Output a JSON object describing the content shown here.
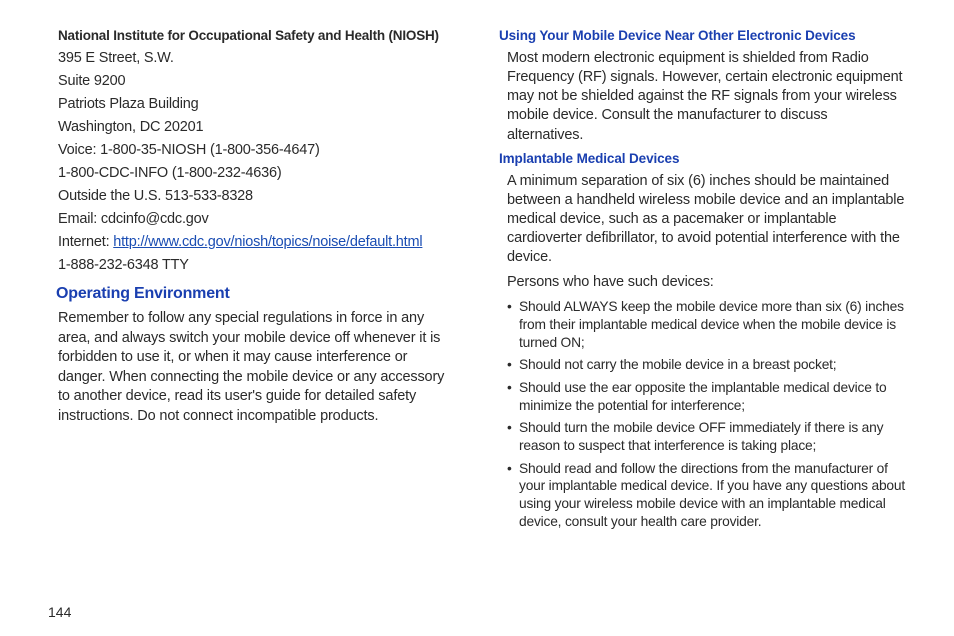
{
  "page_number": "144",
  "colors": {
    "heading_blue": "#1a3fb0",
    "link_blue": "#1a4db3",
    "body_text": "#2a2a2a",
    "background": "#ffffff"
  },
  "typography": {
    "body_fontsize": 14.5,
    "bullet_fontsize": 13.8,
    "h1_fontsize": 16,
    "h2_fontsize": 13.5,
    "bold_line_fontsize": 13.5,
    "font_family": "Arial"
  },
  "left": {
    "org_title": "National Institute for Occupational Safety and Health (NIOSH)",
    "address": [
      "395 E Street, S.W.",
      "Suite 9200",
      "Patriots Plaza Building",
      "Washington, DC 20201",
      "Voice: 1-800-35-NIOSH (1-800-356-4647)",
      "1-800-CDC-INFO (1-800-232-4636)",
      "Outside the U.S. 513-533-8328",
      "Email: cdcinfo@cdc.gov"
    ],
    "internet_prefix": "Internet: ",
    "internet_url": "http://www.cdc.gov/niosh/topics/noise/default.html",
    "tty": "1-888-232-6348 TTY",
    "section_heading": "Operating Environment",
    "section_para": "Remember to follow any special regulations in force in any area, and always switch your mobile device off whenever it is forbidden to use it, or when it may cause interference or danger. When connecting the mobile device or any accessory to another device, read its user's guide for detailed safety instructions. Do not connect incompatible products."
  },
  "right": {
    "sub1_heading": "Using Your Mobile Device Near Other Electronic Devices",
    "sub1_para": "Most modern electronic equipment is shielded from Radio Frequency (RF) signals. However, certain electronic equipment may not be shielded against the RF signals from your wireless mobile device. Consult the manufacturer to discuss alternatives.",
    "sub2_heading": "Implantable Medical Devices",
    "sub2_para1": "A minimum separation of six (6) inches should be maintained between a handheld wireless mobile device and an implantable medical device, such as a pacemaker or implantable cardioverter defibrillator, to avoid potential interference with the device.",
    "sub2_para2": "Persons who have such devices:",
    "bullets": [
      "Should ALWAYS keep the mobile device more than six (6) inches from their implantable medical device when the mobile device is turned ON;",
      "Should not carry the mobile device in a breast pocket;",
      "Should use the ear opposite the implantable medical device to minimize the potential for interference;",
      "Should turn the mobile device OFF immediately if there is any reason to suspect that interference is taking place;",
      "Should read and follow the directions from the manufacturer of your implantable medical device. If you have any questions about using your wireless mobile device with an implantable medical device, consult your health care provider."
    ]
  }
}
